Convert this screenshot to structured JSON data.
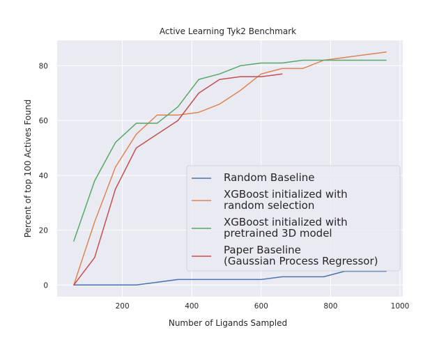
{
  "chart_data": {
    "type": "line",
    "title": "Active Learning Tyk2 Benchmark",
    "xlabel": "Number of Ligands Sampled",
    "ylabel": "Percent of top 100 Actives Found",
    "xlim": [
      12,
      1008
    ],
    "ylim": [
      -4.25,
      89.25
    ],
    "xticks": [
      200,
      400,
      600,
      800,
      1000
    ],
    "yticks": [
      0,
      20,
      40,
      60,
      80
    ],
    "grid": true,
    "legend_position": "center-right",
    "series": [
      {
        "name": "Random Baseline",
        "color": "#4c72b0",
        "x": [
          60,
          120,
          180,
          240,
          300,
          360,
          420,
          480,
          540,
          600,
          660,
          720,
          780,
          840,
          900,
          960
        ],
        "y": [
          0,
          0,
          0,
          0,
          1,
          2,
          2,
          2,
          2,
          2,
          3,
          3,
          3,
          5,
          5,
          5
        ]
      },
      {
        "name": "XGBoost initialized with\nrandom selection",
        "color": "#dd8452",
        "x": [
          60,
          120,
          180,
          240,
          300,
          360,
          420,
          480,
          540,
          600,
          660,
          720,
          780,
          840,
          900,
          960
        ],
        "y": [
          0,
          23,
          43,
          55,
          62,
          62,
          63,
          66,
          71,
          77,
          79,
          79,
          82,
          83,
          84,
          85
        ]
      },
      {
        "name": "XGBoost initialized with\npretrained 3D model",
        "color": "#55a868",
        "x": [
          60,
          120,
          180,
          240,
          300,
          360,
          420,
          480,
          540,
          600,
          660,
          720,
          780,
          840,
          900,
          960
        ],
        "y": [
          16,
          38,
          52,
          59,
          59,
          65,
          75,
          77,
          80,
          81,
          81,
          82,
          82,
          82,
          82,
          82
        ]
      },
      {
        "name": "Paper Baseline\n(Gaussian Process Regressor)",
        "color": "#c44e52",
        "x": [
          60,
          120,
          180,
          240,
          300,
          360,
          420,
          480,
          540,
          600,
          660
        ],
        "y": [
          0,
          10,
          35,
          50,
          55,
          60,
          70,
          75,
          76,
          76,
          77
        ]
      }
    ]
  }
}
